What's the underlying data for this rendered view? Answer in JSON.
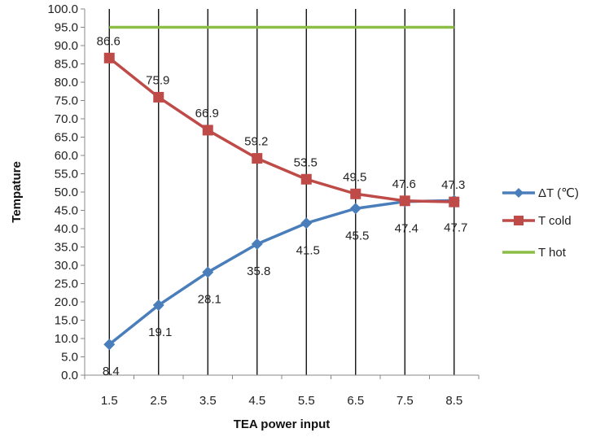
{
  "chart_data": {
    "type": "line",
    "xlabel": "TEA power input",
    "ylabel": "Tempature",
    "x": [
      "1.5",
      "2.5",
      "3.5",
      "4.5",
      "5.5",
      "6.5",
      "7.5",
      "8.5"
    ],
    "ylim": [
      0,
      100
    ],
    "ytick_labels": [
      "0.0",
      "5.0",
      "10.0",
      "15.0",
      "20.0",
      "25.0",
      "30.0",
      "35.0",
      "40.0",
      "45.0",
      "50.0",
      "55.0",
      "60.0",
      "65.0",
      "70.0",
      "75.0",
      "80.0",
      "85.0",
      "90.0",
      "95.0",
      "100.0"
    ],
    "grid": "vertical",
    "legend_position": "right",
    "series": [
      {
        "name": "ΔT (℃)",
        "color": "#4a7ebb",
        "marker": "diamond",
        "values": [
          8.4,
          19.1,
          28.1,
          35.8,
          41.5,
          45.5,
          47.4,
          47.7
        ],
        "labels": [
          "8.4",
          "19.1",
          "28.1",
          "35.8",
          "41.5",
          "45.5",
          "47.4",
          "47.7"
        ]
      },
      {
        "name": "T cold",
        "color": "#be4b48",
        "marker": "square",
        "values": [
          86.6,
          75.9,
          66.9,
          59.2,
          53.5,
          49.5,
          47.6,
          47.3
        ],
        "labels": [
          "86.6",
          "75.9",
          "66.9",
          "59.2",
          "53.5",
          "49.5",
          "47.6",
          "47.3"
        ]
      },
      {
        "name": "T hot",
        "color": "#8cbd45",
        "marker": "none",
        "values": [
          95,
          95,
          95,
          95,
          95,
          95,
          95,
          95
        ]
      }
    ]
  }
}
